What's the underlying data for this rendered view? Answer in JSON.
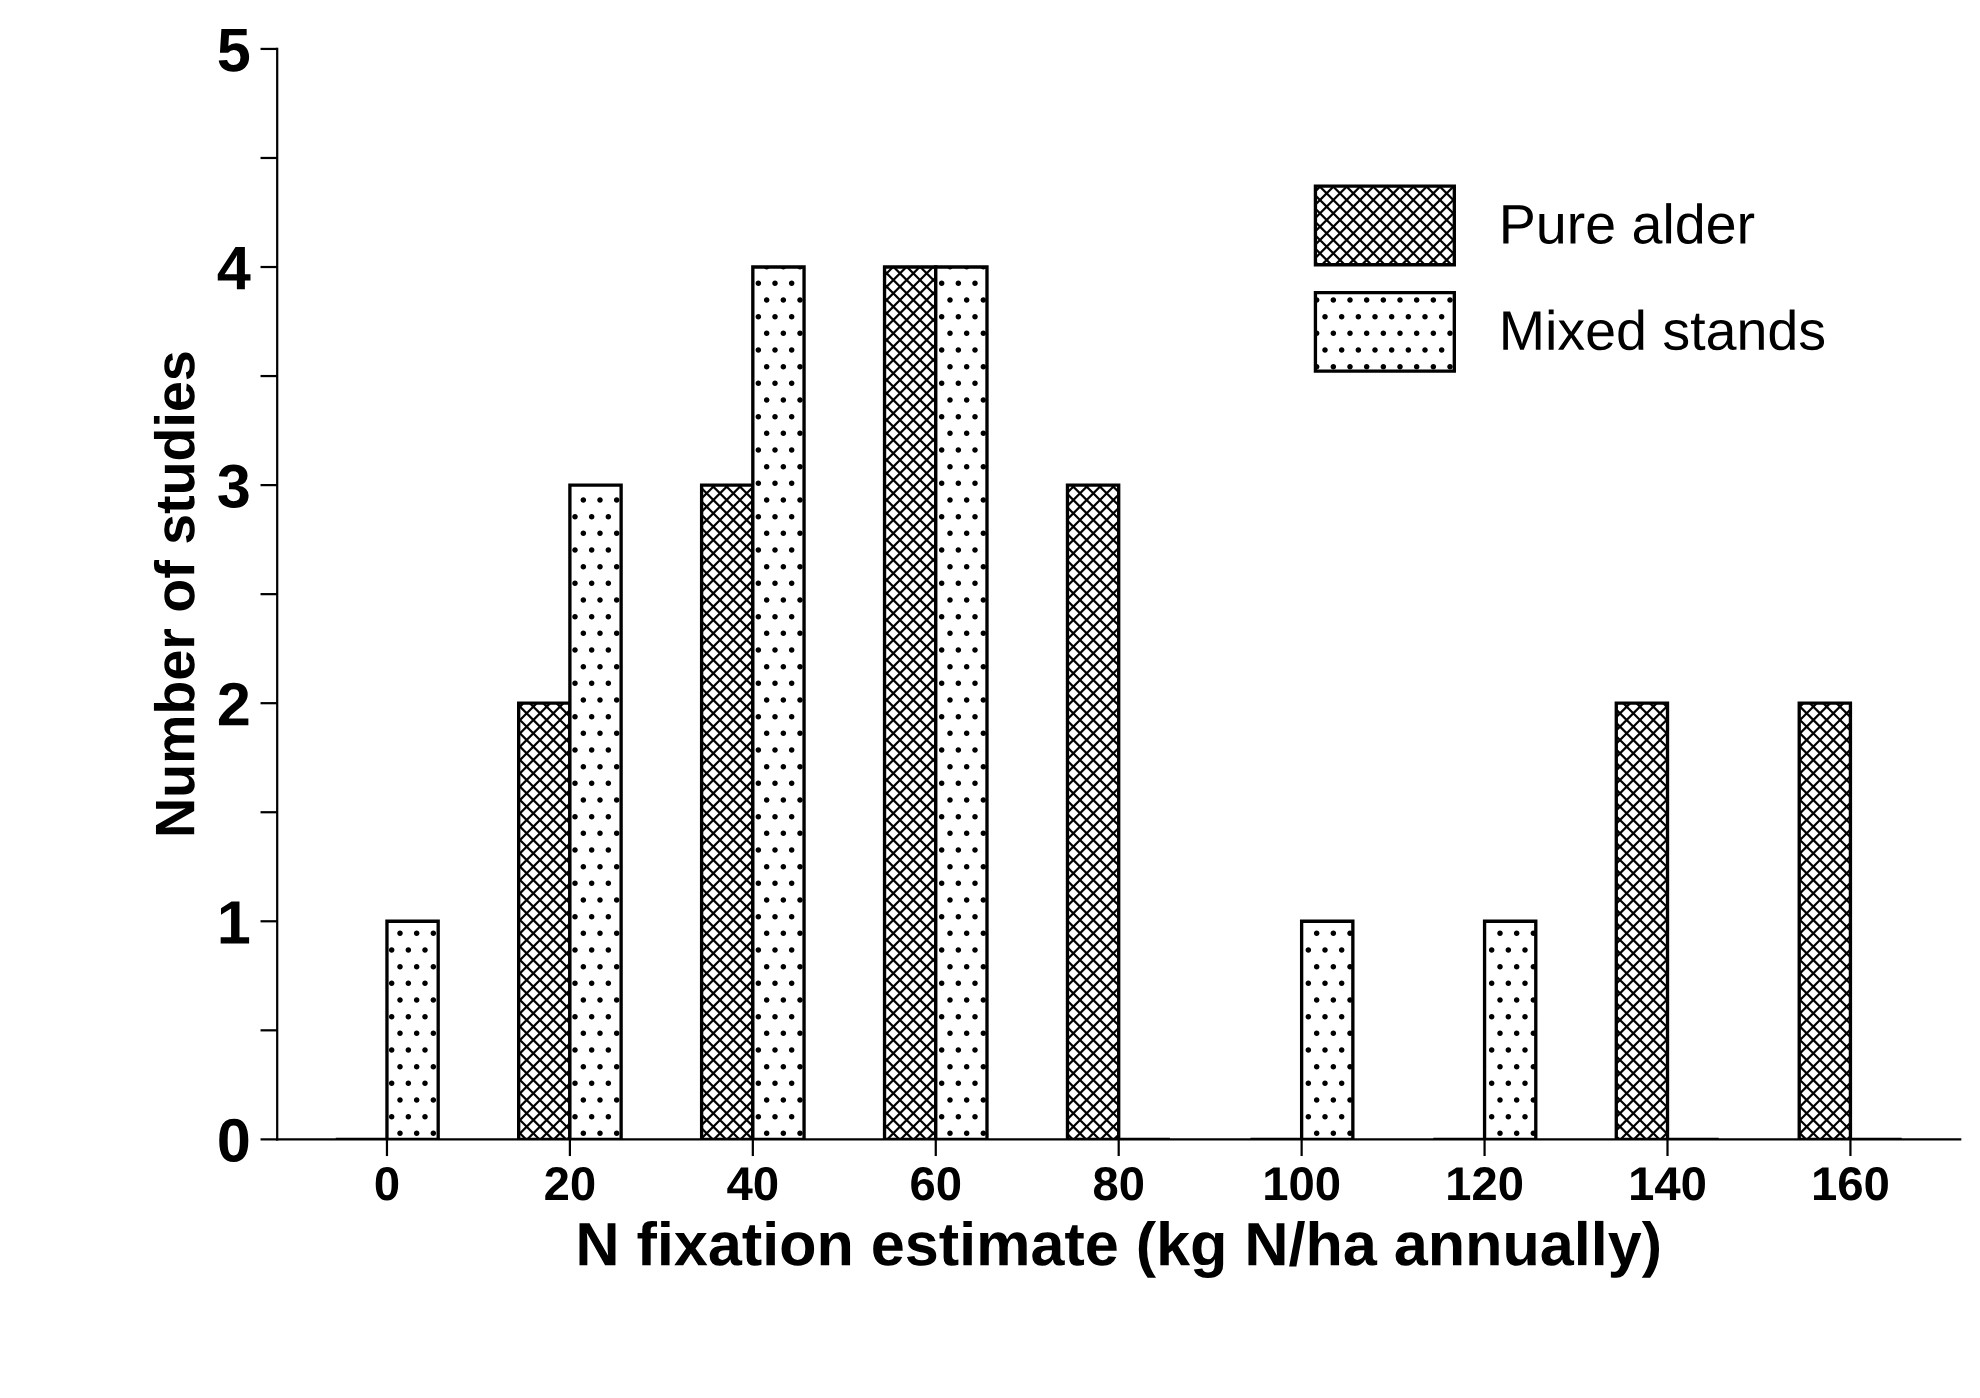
{
  "chart_data": {
    "type": "bar",
    "xlabel": "N fixation estimate (kg N/ha annually)",
    "ylabel": "Number of studies",
    "categories": [
      "0",
      "20",
      "40",
      "60",
      "80",
      "100",
      "120",
      "140",
      "160"
    ],
    "series": [
      {
        "name": "Pure alder",
        "color": "#000000",
        "values": [
          0,
          2,
          3,
          4,
          3,
          0,
          0,
          2,
          2
        ]
      },
      {
        "name": "Mixed stands",
        "color": "#000000",
        "values": [
          1,
          3,
          4,
          4,
          0,
          1,
          1,
          0,
          0
        ]
      }
    ],
    "ylim": [
      0,
      5
    ],
    "yticks": [
      0,
      {
        "value": 0.5,
        "label": null
      },
      1,
      {
        "value": 1.5,
        "label": null
      },
      2,
      {
        "value": 2.5,
        "label": null
      },
      3,
      {
        "value": 3.5,
        "label": null
      },
      4,
      {
        "value": 4.5,
        "label": null
      },
      5
    ],
    "grid": false,
    "legend": "top right"
  }
}
